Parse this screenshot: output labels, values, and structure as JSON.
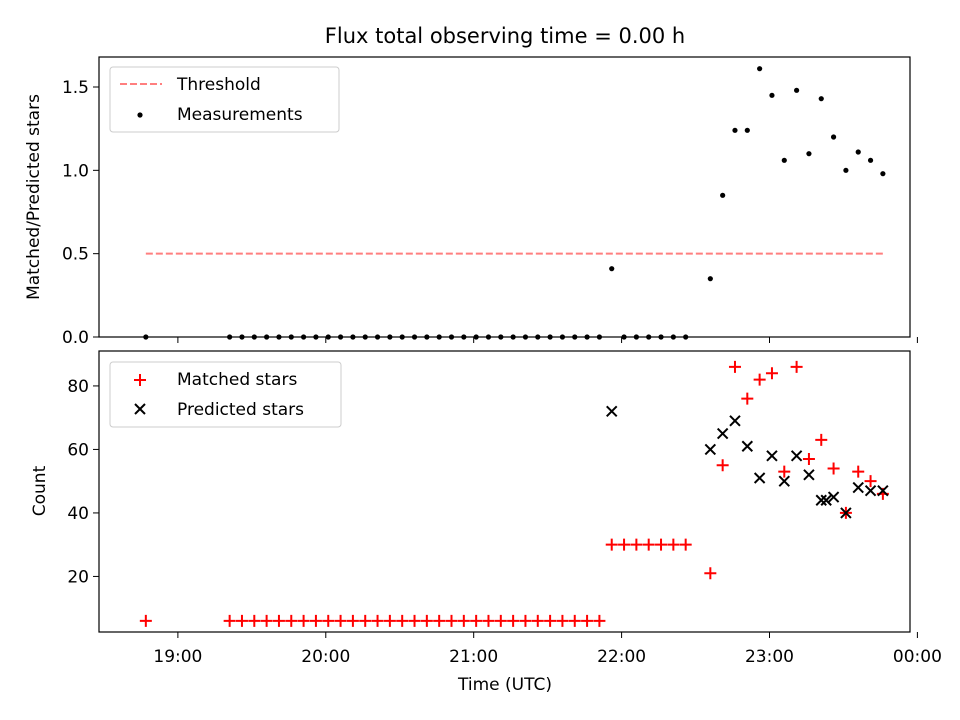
{
  "chart_data": {
    "title": "Flux total observing time = 0.00 h",
    "xlabel": "Time (UTC)",
    "xticks": [
      "19:00",
      "20:00",
      "21:00",
      "22:00",
      "23:00",
      "00:00"
    ],
    "xlim_minutes_since_19": [
      -32,
      297
    ],
    "panels": [
      {
        "type": "scatter",
        "ylabel": "Matched/Predicted stars",
        "ylim": [
          0,
          1.68
        ],
        "yticks": [
          "0.0",
          "0.5",
          "1.0",
          "1.5"
        ],
        "legend_position": "upper-left",
        "series": [
          {
            "name": "Threshold",
            "style": "dashed-line",
            "color": "#ff7f7f",
            "x": [
              "18:47",
              "23:46"
            ],
            "y": [
              0.5,
              0.5
            ]
          },
          {
            "name": "Measurements",
            "style": "dot",
            "color": "#000000",
            "x": [
              "18:47",
              "19:21",
              "19:26",
              "19:31",
              "19:36",
              "19:41",
              "19:46",
              "19:51",
              "19:56",
              "20:01",
              "20:06",
              "20:11",
              "20:16",
              "20:21",
              "20:26",
              "20:31",
              "20:36",
              "20:41",
              "20:46",
              "20:51",
              "20:56",
              "21:01",
              "21:06",
              "21:11",
              "21:16",
              "21:21",
              "21:26",
              "21:31",
              "21:36",
              "21:41",
              "21:46",
              "21:51",
              "21:56",
              "22:01",
              "22:06",
              "22:11",
              "22:16",
              "22:21",
              "22:26",
              "22:36",
              "22:41",
              "22:46",
              "22:51",
              "22:56",
              "23:01",
              "23:06",
              "23:11",
              "23:16",
              "23:21",
              "23:26",
              "23:31",
              "23:36",
              "23:41",
              "23:46"
            ],
            "y": [
              0,
              0,
              0,
              0,
              0,
              0,
              0,
              0,
              0,
              0,
              0,
              0,
              0,
              0,
              0,
              0,
              0,
              0,
              0,
              0,
              0,
              0,
              0,
              0,
              0,
              0,
              0,
              0,
              0,
              0,
              0,
              0,
              0.41,
              0,
              0,
              0,
              0,
              0,
              0,
              0.35,
              0.85,
              1.24,
              1.24,
              1.61,
              1.45,
              1.06,
              1.48,
              1.1,
              1.43,
              1.2,
              1.0,
              1.11,
              1.06,
              0.98
            ]
          }
        ]
      },
      {
        "type": "scatter",
        "ylabel": "Count",
        "ylim": [
          2.5,
          91
        ],
        "yticks": [
          "20",
          "40",
          "60",
          "80"
        ],
        "legend_position": "upper-left",
        "series": [
          {
            "name": "Matched stars",
            "style": "plus",
            "color": "#ff0000",
            "x": [
              "18:47",
              "19:21",
              "19:26",
              "19:31",
              "19:36",
              "19:41",
              "19:46",
              "19:51",
              "19:56",
              "20:01",
              "20:06",
              "20:11",
              "20:16",
              "20:21",
              "20:26",
              "20:31",
              "20:36",
              "20:41",
              "20:46",
              "20:51",
              "20:56",
              "21:01",
              "21:06",
              "21:11",
              "21:16",
              "21:21",
              "21:26",
              "21:31",
              "21:36",
              "21:41",
              "21:46",
              "21:51",
              "21:56",
              "22:01",
              "22:06",
              "22:11",
              "22:16",
              "22:21",
              "22:26",
              "22:36",
              "22:41",
              "22:46",
              "22:51",
              "22:56",
              "23:01",
              "23:06",
              "23:11",
              "23:16",
              "23:21",
              "23:26",
              "23:31",
              "23:36",
              "23:41",
              "23:46"
            ],
            "y": [
              6,
              6,
              6,
              6,
              6,
              6,
              6,
              6,
              6,
              6,
              6,
              6,
              6,
              6,
              6,
              6,
              6,
              6,
              6,
              6,
              6,
              6,
              6,
              6,
              6,
              6,
              6,
              6,
              6,
              6,
              6,
              6,
              30,
              30,
              30,
              30,
              30,
              30,
              30,
              21,
              55,
              86,
              76,
              82,
              84,
              53,
              86,
              57,
              63,
              54,
              40,
              53,
              50,
              46
            ]
          },
          {
            "name": "Predicted stars",
            "style": "x",
            "color": "#000000",
            "x": [
              "21:56",
              "22:36",
              "22:41",
              "22:46",
              "22:51",
              "22:56",
              "23:01",
              "23:06",
              "23:11",
              "23:16",
              "23:21",
              "23:23",
              "23:26",
              "23:31",
              "23:36",
              "23:41",
              "23:46"
            ],
            "y": [
              72,
              60,
              65,
              69,
              61,
              51,
              58,
              50,
              58,
              52,
              44,
              44,
              45,
              40,
              48,
              47,
              47
            ]
          }
        ]
      }
    ]
  }
}
